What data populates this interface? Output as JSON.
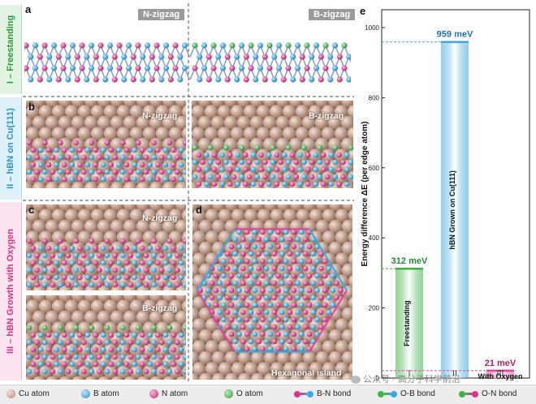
{
  "rows": {
    "row1": "I – Freestanding",
    "row2": "II – hBN on Cu(111)",
    "row3": "III – hBN Growth with Oxygen"
  },
  "panels": {
    "a": {
      "letter": "a",
      "left_tag": "N-zigzag",
      "right_tag": "B-zigzag"
    },
    "b": {
      "letter": "b",
      "left_tag": "N-zigzag",
      "right_tag": "B-zigzag"
    },
    "c": {
      "letter": "c",
      "top_tag": "N-zigzag",
      "bottom_tag": "B-zigzag"
    },
    "d": {
      "letter": "d",
      "caption": "Hexagonal island"
    },
    "e": {
      "letter": "e"
    }
  },
  "legend": {
    "cu": "Cu atom",
    "b": "B atom",
    "n": "N atom",
    "o": "O atom",
    "bn": "B-N bond",
    "ob": "O-B bond",
    "on": "O-N bond"
  },
  "watermark": "公众号 · 高分子科学前沿",
  "colors": {
    "cu": "#c9a48f",
    "boron": "#3ea7dc",
    "nitrogen": "#d6338a",
    "oxygen": "#3fb34a",
    "row1": "#3fb34a",
    "row2": "#3ea7dc",
    "row3": "#e0479a"
  },
  "chart_data": {
    "type": "bar",
    "ylabel": "Energy difference ΔE (per edge atom)",
    "ylim": [
      0,
      1000
    ],
    "yticks": [
      0,
      200,
      400,
      600,
      800,
      1000
    ],
    "categories": [
      "I",
      "II",
      "III"
    ],
    "values": [
      312,
      959,
      21
    ],
    "data_labels": [
      "312 meV",
      "959 meV",
      "21 meV"
    ],
    "bar_labels": [
      "Freestanding",
      "hBN Grown on Cu(111)",
      "With Oxygen"
    ],
    "bar_colors": [
      "#3fb34a",
      "#3ea7dc",
      "#e0479a"
    ]
  }
}
